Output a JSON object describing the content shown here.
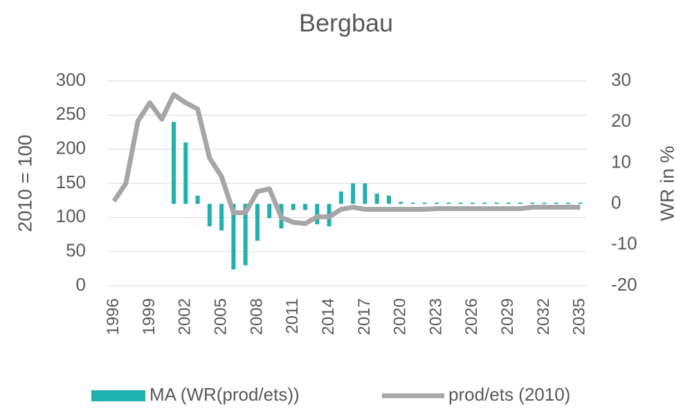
{
  "chart_data": {
    "type": "bar-line",
    "title": "Bergbau",
    "ylabel": "2010 = 100",
    "y2label": "WR in %",
    "categories": [
      "1996",
      null,
      null,
      "1999",
      null,
      null,
      "2002",
      null,
      null,
      "2005",
      null,
      null,
      "2008",
      null,
      null,
      "2011",
      null,
      null,
      "2014",
      null,
      null,
      "2017",
      null,
      null,
      "2020",
      null,
      null,
      "2023",
      null,
      null,
      "2026",
      null,
      null,
      "2029",
      null,
      null,
      "2032",
      null,
      null,
      "2035"
    ],
    "series": [
      {
        "name": "MA (WR(prod/ets))",
        "type": "bar",
        "axis": "y2",
        "color": "#1fb1ae",
        "values": [
          null,
          null,
          null,
          null,
          null,
          20,
          15,
          2,
          -5.5,
          -6.5,
          -16,
          -15,
          -9,
          -3.5,
          -6,
          -1.5,
          -1.5,
          -5,
          -5.5,
          3,
          5,
          5,
          2.5,
          2,
          0.5,
          0.3,
          0.3,
          0.3,
          0.3,
          0.3,
          0.3,
          0.3,
          0.3,
          0.3,
          0.3,
          0.3,
          0.3,
          0.3,
          0.3,
          0.3
        ]
      },
      {
        "name": "prod/ets (2010)",
        "type": "line",
        "axis": "y",
        "color": "#a6a6a6",
        "values": [
          124,
          150,
          241,
          268,
          244,
          280,
          268,
          259,
          187,
          160,
          107,
          107,
          138,
          142,
          100,
          93,
          91,
          101,
          101,
          112,
          115,
          112,
          112,
          112,
          112,
          112,
          112,
          113,
          113,
          113,
          113,
          113,
          113,
          113,
          113,
          115,
          115,
          115,
          115,
          115
        ]
      }
    ],
    "ylim": [
      0,
      300
    ],
    "yticks": [
      0,
      50,
      100,
      150,
      200,
      250,
      300
    ],
    "y2lim": [
      -20,
      30
    ],
    "y2ticks": [
      -20,
      -10,
      0,
      10,
      20,
      30
    ],
    "grid": true,
    "legend": "bottom"
  }
}
